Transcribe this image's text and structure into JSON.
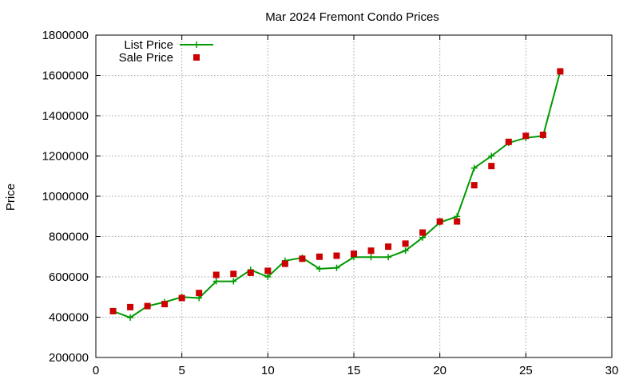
{
  "chart_data": {
    "type": "line",
    "title": "Mar 2024 Fremont Condo Prices",
    "xlabel": "",
    "ylabel": "Price",
    "xlim": [
      0,
      30
    ],
    "ylim": [
      200000,
      1800000
    ],
    "xticks": [
      0,
      5,
      10,
      15,
      20,
      25,
      30
    ],
    "yticks": [
      200000,
      400000,
      600000,
      800000,
      1000000,
      1200000,
      1400000,
      1600000,
      1800000
    ],
    "grid": true,
    "legend_position": "top-left",
    "series": [
      {
        "name": "List Price",
        "style": "line-plus",
        "color": "#009900",
        "x": [
          1,
          2,
          3,
          4,
          5,
          6,
          7,
          8,
          9,
          10,
          11,
          12,
          13,
          14,
          15,
          16,
          17,
          18,
          19,
          20,
          21,
          22,
          23,
          24,
          25,
          26,
          27
        ],
        "y": [
          430000,
          398000,
          455000,
          475000,
          500000,
          495000,
          578000,
          578000,
          635000,
          600000,
          680000,
          695000,
          640000,
          645000,
          698000,
          698000,
          698000,
          730000,
          795000,
          870000,
          900000,
          1140000,
          1200000,
          1265000,
          1290000,
          1300000,
          1620000
        ]
      },
      {
        "name": "Sale Price",
        "style": "square-marker",
        "color": "#cc0000",
        "x": [
          1,
          2,
          3,
          4,
          5,
          6,
          7,
          8,
          9,
          10,
          11,
          12,
          13,
          14,
          15,
          16,
          17,
          18,
          19,
          20,
          21,
          22,
          23,
          24,
          25,
          26,
          27
        ],
        "y": [
          430000,
          450000,
          455000,
          465000,
          495000,
          520000,
          610000,
          615000,
          620000,
          630000,
          665000,
          690000,
          700000,
          705000,
          715000,
          730000,
          750000,
          765000,
          820000,
          875000,
          875000,
          1055000,
          1150000,
          1270000,
          1300000,
          1305000,
          1620000
        ]
      }
    ]
  }
}
